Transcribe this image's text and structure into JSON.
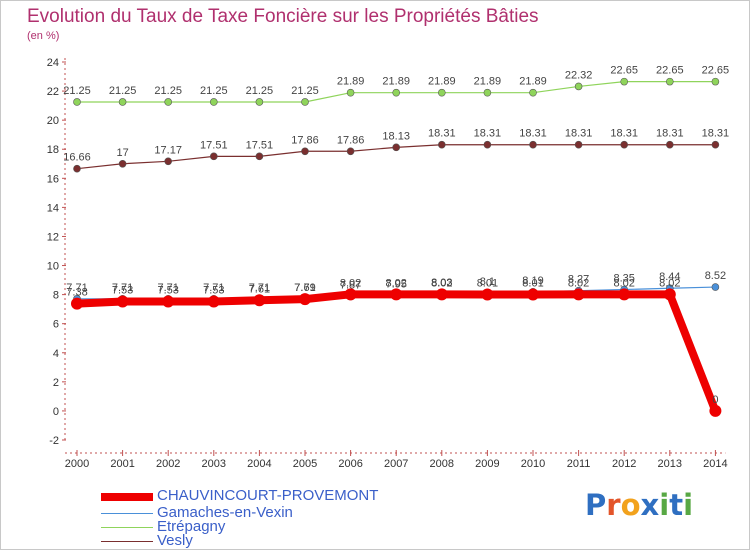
{
  "title": "Evolution du Taux de Taxe Foncière sur les Propriétés Bâties",
  "subtitle": "(en %)",
  "logo": {
    "text": "Proxiti",
    "colors": [
      "#2f6fc1",
      "#e3552a",
      "#f2a21d",
      "#2f6fc1",
      "#58a844",
      "#2f6fc1",
      "#58a844"
    ]
  },
  "chart_data": {
    "type": "line",
    "title": "Evolution du Taux de Taxe Foncière sur les Propriétés Bâties",
    "ylabel": "(en %)",
    "xlabel": "",
    "ylim": [
      -2,
      24
    ],
    "yticks": [
      -2,
      0,
      2,
      4,
      6,
      8,
      10,
      12,
      14,
      16,
      18,
      20,
      22,
      24
    ],
    "grid": false,
    "legend": "bottom-left",
    "categories": [
      "2000",
      "2001",
      "2002",
      "2003",
      "2004",
      "2005",
      "2006",
      "2007",
      "2008",
      "2009",
      "2010",
      "2011",
      "2012",
      "2013",
      "2014"
    ],
    "series": [
      {
        "name": "CHAUVINCOURT-PROVEMONT",
        "color": "#ee0000",
        "values": [
          7.38,
          7.53,
          7.53,
          7.53,
          7.61,
          7.69,
          8.02,
          8.02,
          8.02,
          8.01,
          8.01,
          8.02,
          8.02,
          8.02,
          0
        ],
        "labels": [
          "7.38",
          "7.53",
          "7.53",
          "7.53",
          "7.61",
          "7.69",
          "8.02",
          "8.02",
          "8.02",
          "8.01",
          "8.01",
          "8.02",
          "8.02",
          "8.02",
          "0"
        ]
      },
      {
        "name": "Gamaches-en-Vexin",
        "color": "#4a90d9",
        "values": [
          7.71,
          7.71,
          7.71,
          7.71,
          7.71,
          7.71,
          7.87,
          7.95,
          8.03,
          8.1,
          8.19,
          8.27,
          8.35,
          8.44,
          8.52
        ],
        "labels": [
          "7.71",
          "7.71",
          "7.71",
          "7.71",
          "7.71",
          "7.71",
          "7.87",
          "7.95",
          "8.03",
          "8.1",
          "8.19",
          "8.27",
          "8.35",
          "8.44",
          "8.52"
        ]
      },
      {
        "name": "Etrépagny",
        "color": "#8fd45b",
        "values": [
          21.25,
          21.25,
          21.25,
          21.25,
          21.25,
          21.25,
          21.89,
          21.89,
          21.89,
          21.89,
          21.89,
          22.32,
          22.65,
          22.65,
          22.65
        ],
        "labels": [
          "21.25",
          "21.25",
          "21.25",
          "21.25",
          "21.25",
          "21.25",
          "21.89",
          "21.89",
          "21.89",
          "21.89",
          "21.89",
          "22.32",
          "22.65",
          "22.65",
          "22.65"
        ]
      },
      {
        "name": "Vesly",
        "color": "#7a2f2f",
        "values": [
          16.66,
          17,
          17.17,
          17.51,
          17.51,
          17.86,
          17.86,
          18.13,
          18.31,
          18.31,
          18.31,
          18.31,
          18.31,
          18.31,
          18.31
        ],
        "labels": [
          "16.66",
          "17",
          "17.17",
          "17.51",
          "17.51",
          "17.86",
          "17.86",
          "18.13",
          "18.31",
          "18.31",
          "18.31",
          "18.31",
          "18.31",
          "18.31",
          "18.31"
        ]
      }
    ]
  }
}
